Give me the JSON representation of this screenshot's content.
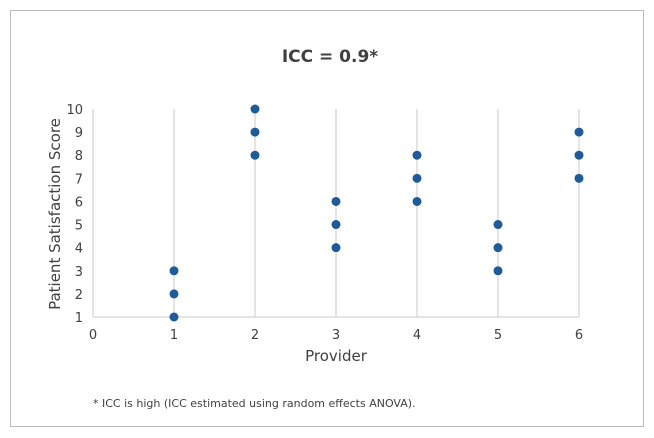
{
  "chart_data": {
    "type": "scatter",
    "title": "ICC = 0.9*",
    "xlabel": "Provider",
    "ylabel": "Patient Satisfaction Score",
    "xlim": [
      0,
      6
    ],
    "ylim": [
      1,
      10
    ],
    "xticks": [
      "0",
      "1",
      "2",
      "3",
      "4",
      "5",
      "6"
    ],
    "yticks": [
      "1",
      "2",
      "3",
      "4",
      "5",
      "6",
      "7",
      "8",
      "9",
      "10"
    ],
    "grid": "vertical",
    "color": "#1f5a9a",
    "points": [
      {
        "x": 1,
        "y": 1
      },
      {
        "x": 1,
        "y": 2
      },
      {
        "x": 1,
        "y": 3
      },
      {
        "x": 2,
        "y": 8
      },
      {
        "x": 2,
        "y": 9
      },
      {
        "x": 2,
        "y": 10
      },
      {
        "x": 3,
        "y": 4
      },
      {
        "x": 3,
        "y": 5
      },
      {
        "x": 3,
        "y": 6
      },
      {
        "x": 4,
        "y": 6
      },
      {
        "x": 4,
        "y": 7
      },
      {
        "x": 4,
        "y": 8
      },
      {
        "x": 5,
        "y": 3
      },
      {
        "x": 5,
        "y": 4
      },
      {
        "x": 5,
        "y": 5
      },
      {
        "x": 6,
        "y": 7
      },
      {
        "x": 6,
        "y": 8
      },
      {
        "x": 6,
        "y": 9
      }
    ],
    "footnote": "* ICC is high (ICC estimated using random effects ANOVA)."
  }
}
